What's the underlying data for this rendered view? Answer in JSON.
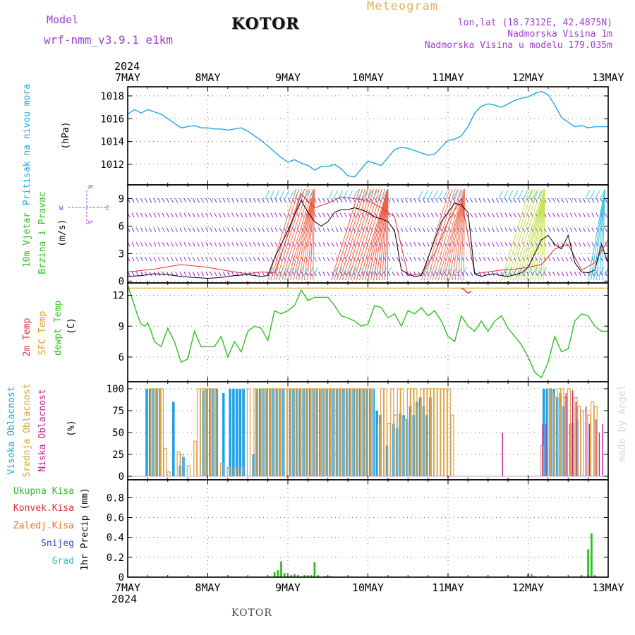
{
  "header": {
    "model_label": "Model",
    "model_name": "wrf-nmm_v3.9.1 e1km",
    "title": "KOTOR",
    "meteogram": "Meteogram",
    "coords": "lon,lat (18.7312E, 42.4875N)",
    "altitude": "Nadmorska Visina 1m",
    "model_altitude": "Nadmorska Visina u modelu 179.035m"
  },
  "footer": {
    "station": "KOTOR",
    "credit": "made by Angel"
  },
  "colors": {
    "pressure": "#20a8e8",
    "temp": "#e03030",
    "sfc": "#e0a020",
    "dewpt": "#30c020",
    "high_cloud": "#20a0e8",
    "mid_cloud": "#e0a040",
    "low_cloud": "#c02090",
    "precip_total": "#30c020",
    "convective": "#e03030",
    "frozen": "#f07030",
    "snow": "#4040e0",
    "hail": "#30c0b0",
    "purple_label": "#a040d0"
  },
  "chart_data": [
    {
      "type": "line",
      "panel": "pressure",
      "top_year": "2024",
      "bottom_year": "2024",
      "x_tick_labels": [
        "7MAY",
        "8MAY",
        "9MAY",
        "10MAY",
        "11MAY",
        "12MAY",
        "13MAY"
      ],
      "xlim": [
        0,
        144
      ],
      "ylabel_name": "Pritisak na nivou mora",
      "ylabel_unit": "(hPa)",
      "ylim": [
        1010.2,
        1018.8
      ],
      "y_ticks": [
        1012,
        1014,
        1016,
        1018
      ],
      "grid": true,
      "series": [
        {
          "x": [
            0,
            2,
            4,
            6,
            8,
            10,
            12,
            14,
            16,
            18,
            20,
            22,
            24,
            26,
            28,
            30,
            32,
            34,
            36,
            38,
            40,
            42,
            44,
            46,
            48,
            50,
            52,
            54,
            56,
            58,
            60,
            62,
            64,
            66,
            68,
            70,
            72,
            74,
            76,
            78,
            80,
            82,
            84,
            86,
            88,
            90,
            92,
            94,
            96,
            98,
            100,
            102,
            104,
            106,
            108,
            110,
            112,
            114,
            116,
            118,
            120,
            122,
            124,
            126,
            128,
            130,
            132,
            134,
            136,
            138,
            140,
            142,
            144
          ],
          "values": [
            1016.4,
            1016.8,
            1016.5,
            1016.8,
            1016.6,
            1016.4,
            1016.0,
            1015.6,
            1015.2,
            1015.3,
            1015.4,
            1015.2,
            1015.2,
            1015.1,
            1015.1,
            1015.0,
            1015.1,
            1015.2,
            1014.9,
            1014.5,
            1014.1,
            1013.6,
            1013.1,
            1012.6,
            1012.2,
            1012.4,
            1012.1,
            1011.9,
            1011.5,
            1011.8,
            1011.8,
            1012.0,
            1011.6,
            1011.0,
            1010.9,
            1011.6,
            1012.3,
            1012.1,
            1011.9,
            1012.6,
            1013.3,
            1013.5,
            1013.4,
            1013.2,
            1013.0,
            1012.8,
            1012.9,
            1013.5,
            1014.1,
            1014.2,
            1014.5,
            1015.3,
            1016.5,
            1017.1,
            1017.3,
            1017.2,
            1017.0,
            1017.3,
            1017.6,
            1017.8,
            1017.9,
            1018.2,
            1018.4,
            1018.1,
            1017.2,
            1016.1,
            1015.7,
            1015.3,
            1015.4,
            1015.2,
            1015.3,
            1015.3,
            1015.3
          ]
        }
      ]
    },
    {
      "type": "line",
      "panel": "wind",
      "ylabel_name": "10m Vjetar",
      "ylabel_name2": "Brzina i Pravac",
      "ylabel_unit": "(m/s)",
      "compass": {
        "n": "N",
        "e": "E",
        "s": "S",
        "w": "W"
      },
      "ylim": [
        -0.2,
        10.5
      ],
      "y_ticks": [
        0,
        3,
        6,
        9
      ],
      "grid": true,
      "series": [
        {
          "name": "speed",
          "x": [
            0,
            4,
            8,
            12,
            16,
            20,
            24,
            28,
            32,
            36,
            40,
            42,
            44,
            46,
            48,
            50,
            52,
            54,
            56,
            58,
            60,
            62,
            64,
            66,
            68,
            70,
            72,
            74,
            76,
            78,
            80,
            82,
            84,
            86,
            88,
            90,
            92,
            94,
            96,
            98,
            100,
            102,
            104,
            106,
            108,
            110,
            112,
            114,
            116,
            118,
            120,
            122,
            124,
            126,
            128,
            130,
            132,
            134,
            136,
            138,
            140,
            142,
            144
          ],
          "values": [
            0.5,
            0.6,
            0.8,
            0.7,
            0.5,
            0.4,
            0.3,
            0.4,
            0.6,
            0.7,
            0.5,
            0.6,
            2.5,
            4.0,
            5.5,
            7.2,
            8.8,
            7.5,
            6.5,
            6.0,
            6.5,
            7.5,
            7.8,
            7.8,
            8.0,
            7.8,
            7.5,
            7.0,
            6.8,
            6.5,
            5.5,
            1.2,
            0.8,
            0.5,
            0.6,
            2.5,
            4.5,
            6.5,
            7.5,
            8.5,
            8.3,
            7.5,
            0.8,
            0.5,
            0.7,
            0.8,
            0.6,
            0.5,
            0.7,
            0.9,
            1.5,
            3.0,
            4.5,
            5.0,
            4.0,
            3.5,
            5.0,
            2.0,
            1.0,
            0.9,
            1.2,
            4.0,
            2.0
          ]
        },
        {
          "name": "gust",
          "x": [
            0,
            8,
            16,
            24,
            32,
            36,
            40,
            44,
            48,
            52,
            56,
            60,
            64,
            68,
            72,
            76,
            80,
            84,
            88,
            92,
            96,
            100,
            104,
            108,
            112,
            116,
            120,
            124,
            128,
            132,
            136,
            140,
            144
          ],
          "values": [
            1.0,
            1.3,
            1.8,
            1.5,
            1.0,
            0.8,
            1.0,
            0.9,
            5.0,
            9.5,
            8.0,
            8.5,
            9.2,
            9.0,
            8.8,
            8.0,
            7.0,
            0.6,
            0.8,
            3.0,
            6.5,
            9.0,
            0.8,
            1.0,
            1.2,
            1.3,
            1.5,
            1.8,
            3.5,
            4.0,
            1.2,
            2.0,
            4.5
          ]
        }
      ]
    },
    {
      "type": "line",
      "panel": "temperature",
      "ylabel_names": [
        "2m Temp",
        "SFC Temp",
        "dewpt Temp"
      ],
      "ylabel_unit": "(C)",
      "ylim": [
        3.6,
        13.2
      ],
      "y_ticks": [
        6,
        9,
        12
      ],
      "grid": true,
      "series": [
        {
          "name": "dewpt Temp",
          "x": [
            0,
            1,
            2,
            3,
            4,
            5,
            6,
            7,
            8,
            10,
            12,
            14,
            16,
            18,
            20,
            22,
            24,
            26,
            28,
            30,
            32,
            34,
            36,
            38,
            40,
            42,
            44,
            46,
            48,
            50,
            52,
            54,
            56,
            58,
            60,
            62,
            64,
            66,
            68,
            70,
            72,
            74,
            76,
            78,
            80,
            82,
            84,
            86,
            88,
            90,
            92,
            94,
            96,
            98,
            100,
            102,
            104,
            106,
            108,
            110,
            112,
            114,
            116,
            118,
            120,
            122,
            124,
            126,
            128,
            130,
            132,
            134,
            136,
            138,
            140,
            142,
            144
          ],
          "values": [
            13.0,
            12.0,
            11.0,
            10.0,
            9.2,
            9.0,
            9.3,
            8.5,
            7.5,
            7.0,
            8.8,
            7.5,
            5.5,
            5.8,
            8.5,
            7.0,
            7.0,
            7.0,
            8.0,
            6.0,
            7.5,
            6.5,
            8.5,
            9.0,
            8.8,
            7.6,
            10.5,
            10.2,
            10.5,
            11.0,
            12.5,
            11.5,
            11.8,
            11.8,
            11.8,
            11.0,
            10.0,
            9.8,
            9.5,
            9.0,
            9.2,
            11.0,
            10.8,
            9.8,
            10.2,
            9.0,
            10.5,
            10.2,
            10.8,
            10.0,
            10.5,
            9.5,
            8.0,
            7.5,
            10.0,
            9.0,
            8.5,
            9.5,
            8.5,
            9.5,
            10.0,
            8.8,
            8.0,
            7.2,
            6.0,
            4.5,
            4.0,
            5.5,
            8.0,
            6.5,
            6.8,
            9.5,
            10.2,
            10.0,
            9.0,
            8.5,
            8.5
          ]
        },
        {
          "name": "SFC Temp",
          "x": [
            0,
            144
          ],
          "values": [
            12.7,
            12.7
          ]
        },
        {
          "name": "2m Temp",
          "x": [
            100,
            101,
            102,
            103
          ],
          "values": [
            12.7,
            12.5,
            12.2,
            12.4
          ]
        }
      ]
    },
    {
      "type": "bar",
      "panel": "cloud",
      "ylabel_names": [
        "Visoka Oblacnost",
        "Srednja Oblacnost",
        "Niska Oblacnost"
      ],
      "ylabel_unit": "(%)",
      "ylim": [
        -4,
        108
      ],
      "y_ticks": [
        0,
        25,
        50,
        75,
        100
      ],
      "y_tick_labels": [
        "0",
        "25",
        "50",
        "75",
        "100"
      ],
      "grid": true,
      "series": [
        {
          "name": "Visoka Oblacnost",
          "x": [
            6,
            7,
            8,
            9,
            10,
            14,
            16,
            17,
            23,
            24,
            25,
            26,
            27,
            29,
            31,
            32,
            33,
            34,
            35,
            38,
            39,
            40,
            41,
            42,
            43,
            44,
            45,
            46,
            47,
            49,
            50,
            51,
            52,
            53,
            54,
            55,
            56,
            57,
            58,
            59,
            60,
            61,
            62,
            63,
            64,
            65,
            66,
            67,
            68,
            69,
            70,
            71,
            72,
            73,
            74,
            75,
            76,
            78,
            80,
            81,
            82,
            83,
            84,
            85,
            86,
            87,
            88,
            89,
            90,
            91,
            125,
            126,
            127,
            128,
            129,
            130,
            131,
            133,
            135
          ],
          "values": [
            100,
            100,
            100,
            100,
            100,
            85,
            12,
            22,
            98,
            100,
            100,
            100,
            100,
            95,
            100,
            100,
            100,
            100,
            100,
            25,
            100,
            100,
            100,
            100,
            100,
            100,
            100,
            100,
            100,
            100,
            100,
            100,
            100,
            100,
            100,
            100,
            100,
            100,
            100,
            100,
            100,
            100,
            100,
            100,
            100,
            100,
            100,
            100,
            100,
            100,
            100,
            100,
            100,
            100,
            100,
            75,
            70,
            35,
            60,
            55,
            72,
            70,
            65,
            80,
            70,
            85,
            90,
            80,
            70,
            90,
            100,
            100,
            100,
            100,
            90,
            95,
            80,
            60,
            65
          ]
        },
        {
          "name": "Srednja Oblacnost",
          "x": [
            7,
            8,
            9,
            10,
            11,
            12,
            15,
            16,
            18,
            20,
            21,
            22,
            23,
            24,
            25,
            26,
            28,
            30,
            32,
            34,
            36,
            38,
            40,
            41,
            42,
            43,
            44,
            45,
            46,
            47,
            48,
            49,
            50,
            51,
            52,
            53,
            54,
            55,
            56,
            57,
            58,
            59,
            60,
            61,
            62,
            63,
            64,
            65,
            66,
            67,
            68,
            69,
            70,
            71,
            72,
            73,
            75,
            76,
            77,
            78,
            79,
            80,
            81,
            82,
            83,
            84,
            85,
            86,
            87,
            88,
            89,
            90,
            91,
            92,
            93,
            94,
            95,
            96,
            97,
            124,
            126,
            127,
            128,
            129,
            130,
            131,
            132,
            133,
            134,
            135,
            136,
            138,
            139,
            140
          ],
          "values": [
            100,
            100,
            100,
            100,
            32,
            5,
            28,
            25,
            12,
            40,
            100,
            100,
            100,
            100,
            100,
            100,
            15,
            10,
            10,
            10,
            100,
            100,
            100,
            100,
            100,
            100,
            100,
            100,
            100,
            100,
            100,
            100,
            100,
            100,
            100,
            100,
            100,
            100,
            100,
            100,
            100,
            100,
            100,
            100,
            100,
            100,
            100,
            100,
            100,
            100,
            100,
            100,
            100,
            100,
            100,
            100,
            60,
            100,
            100,
            60,
            100,
            70,
            100,
            100,
            65,
            100,
            100,
            100,
            80,
            100,
            100,
            100,
            100,
            100,
            100,
            100,
            100,
            100,
            70,
            35,
            100,
            95,
            90,
            100,
            100,
            90,
            100,
            60,
            90,
            80,
            75,
            70,
            85,
            80
          ]
        },
        {
          "name": "Niska Oblacnost",
          "x": [
            112,
            124,
            125,
            131,
            133,
            134,
            137,
            138,
            140,
            141,
            142
          ],
          "values": [
            50,
            60,
            60,
            95,
            98,
            85,
            80,
            60,
            65,
            50,
            60
          ]
        }
      ]
    },
    {
      "type": "bar",
      "panel": "precip",
      "legend": [
        "Ukupna Kisa",
        "Konvek.Kisa",
        "Zaledj.Kisa",
        "Snijeg",
        "Grad"
      ],
      "ylabel_unit": "1hr Precip (mm)",
      "ylim": [
        0,
        0.98
      ],
      "y_ticks": [
        0,
        0.2,
        0.4,
        0.6,
        0.8
      ],
      "y_tick_labels": [
        "0",
        "0.2",
        "0.4",
        "0.6",
        "0.8"
      ],
      "grid": true,
      "series": [
        {
          "name": "Ukupna Kisa",
          "x": [
            44,
            45,
            46,
            47,
            48,
            49,
            50,
            51,
            52,
            53,
            54,
            55,
            56,
            57,
            59,
            60,
            61,
            120,
            121,
            122,
            136,
            138,
            139,
            140
          ],
          "values": [
            0.05,
            0.07,
            0.16,
            0.04,
            0.01,
            0.02,
            0.03,
            0.02,
            0.01,
            0.02,
            0.01,
            0.02,
            0.15,
            0.02,
            0.01,
            0.01,
            0.01,
            0.03,
            0.03,
            0.01,
            0.02,
            0.28,
            0.44,
            0.02
          ]
        }
      ]
    }
  ]
}
